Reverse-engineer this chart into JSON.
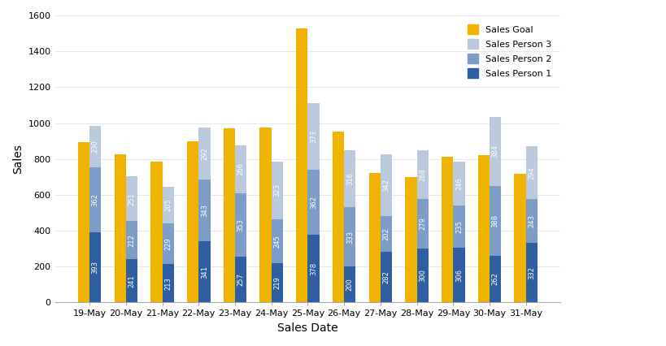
{
  "dates": [
    "19-May",
    "20-May",
    "21-May",
    "22-May",
    "23-May",
    "24-May",
    "25-May",
    "26-May",
    "27-May",
    "28-May",
    "29-May",
    "30-May",
    "31-May"
  ],
  "sales_person1": [
    393,
    241,
    213,
    341,
    257,
    219,
    378,
    200,
    282,
    300,
    306,
    262,
    332
  ],
  "sales_person2": [
    362,
    212,
    229,
    343,
    353,
    245,
    362,
    333,
    202,
    279,
    235,
    388,
    243
  ],
  "sales_person3": [
    230,
    251,
    205,
    292,
    266,
    323,
    373,
    316,
    342,
    268,
    246,
    384,
    294
  ],
  "sales_goal": [
    893,
    827,
    783,
    900,
    970,
    975,
    1527,
    953,
    722,
    700,
    813,
    820,
    717
  ],
  "color_person1": "#2E5FA3",
  "color_person2": "#7C9DC8",
  "color_person3": "#BAC9DC",
  "color_goal": "#F0B400",
  "xlabel": "Sales Date",
  "ylabel": "Sales",
  "ylim": [
    0,
    1600
  ],
  "yticks": [
    0,
    200,
    400,
    600,
    800,
    1000,
    1200,
    1400,
    1600
  ],
  "legend_labels": [
    "Sales Goal",
    "Sales Person 3",
    "Sales Person 2",
    "Sales Person 1"
  ],
  "figsize": [
    8.19,
    4.26
  ],
  "dpi": 100,
  "bar_width": 0.32,
  "label_fontsize": 6.0
}
